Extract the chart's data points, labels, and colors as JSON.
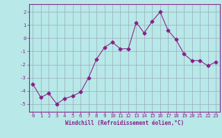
{
  "x": [
    0,
    1,
    2,
    3,
    4,
    5,
    6,
    7,
    8,
    9,
    10,
    11,
    12,
    13,
    14,
    15,
    16,
    17,
    18,
    19,
    20,
    21,
    22,
    23
  ],
  "y": [
    -3.5,
    -4.5,
    -4.2,
    -5.0,
    -4.6,
    -4.4,
    -4.1,
    -3.0,
    -1.6,
    -0.7,
    -0.3,
    -0.8,
    -0.8,
    1.2,
    0.4,
    1.3,
    2.0,
    0.6,
    -0.1,
    -1.2,
    -1.7,
    -1.7,
    -2.1,
    -1.8
  ],
  "line_color": "#882288",
  "marker": "D",
  "markersize": 2.5,
  "linewidth": 0.8,
  "background_color": "#b8e8e8",
  "grid_color": "#99aabb",
  "xlabel": "Windchill (Refroidissement éolien,°C)",
  "xlabel_color": "#882288",
  "tick_color": "#882288",
  "spine_color": "#882288",
  "xlim": [
    -0.5,
    23.5
  ],
  "ylim": [
    -5.6,
    2.6
  ],
  "yticks": [
    -5,
    -4,
    -3,
    -2,
    -1,
    0,
    1,
    2
  ],
  "xticks": [
    0,
    1,
    2,
    3,
    4,
    5,
    6,
    7,
    8,
    9,
    10,
    11,
    12,
    13,
    14,
    15,
    16,
    17,
    18,
    19,
    20,
    21,
    22,
    23
  ],
  "xlabel_fontsize": 5.5,
  "tick_fontsize": 5.2
}
